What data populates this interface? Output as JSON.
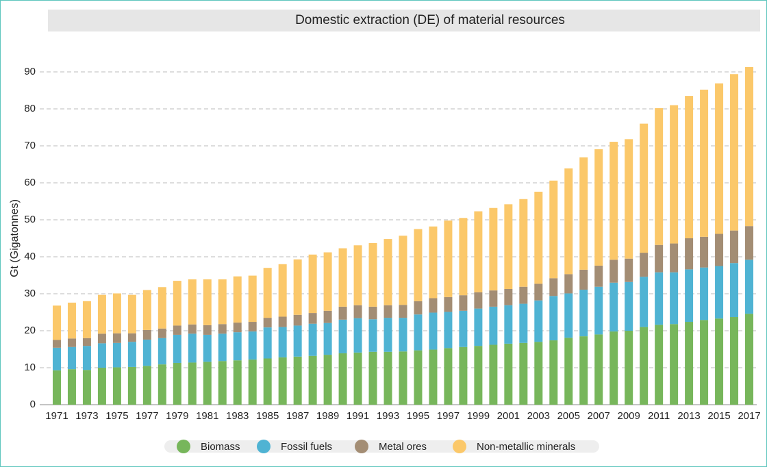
{
  "chart_data": {
    "type": "stacked_bar",
    "title": "Domestic extraction (DE) of material resources",
    "y_label": "Gt (Gigatonnes)",
    "categories": [
      "1971",
      null,
      "1973",
      null,
      "1975",
      null,
      "1977",
      null,
      "1979",
      null,
      "1981",
      null,
      "1983",
      null,
      "1985",
      null,
      "1987",
      null,
      "1989",
      null,
      "1991",
      null,
      "1993",
      null,
      "1995",
      null,
      "1997",
      null,
      "1999",
      null,
      "2001",
      null,
      "2003",
      null,
      "2005",
      null,
      "2007",
      null,
      "2009",
      null,
      "2011",
      null,
      "2013",
      null,
      "2015",
      null,
      "2017"
    ],
    "series": [
      {
        "name": "Biomass",
        "color": "#77b65b",
        "values": [
          9.3,
          9.6,
          9.4,
          10.0,
          10.1,
          10.2,
          10.5,
          10.9,
          11.3,
          11.4,
          11.6,
          11.8,
          12.0,
          12.2,
          12.5,
          12.8,
          13.0,
          13.2,
          13.5,
          13.9,
          14.1,
          14.3,
          14.3,
          14.4,
          14.7,
          14.9,
          15.3,
          15.6,
          15.9,
          16.2,
          16.5,
          16.7,
          17.0,
          17.4,
          18.1,
          18.5,
          19.0,
          19.8,
          20.0,
          21.0,
          21.6,
          21.8,
          22.4,
          22.9,
          23.3,
          23.7,
          24.6
        ]
      },
      {
        "name": "Fossil fuels",
        "color": "#4fb3d3",
        "values": [
          6.1,
          6.0,
          6.5,
          6.6,
          6.6,
          6.8,
          7.1,
          7.1,
          7.6,
          7.8,
          7.3,
          7.4,
          7.6,
          7.6,
          8.4,
          8.2,
          8.4,
          8.7,
          8.6,
          9.1,
          9.3,
          8.8,
          9.2,
          9.1,
          9.7,
          10.0,
          9.8,
          9.8,
          10.1,
          10.3,
          10.4,
          10.6,
          11.2,
          12.0,
          12.0,
          12.6,
          12.9,
          13.2,
          13.2,
          13.6,
          14.2,
          14.0,
          14.2,
          14.2,
          14.2,
          14.6,
          14.6
        ]
      },
      {
        "name": "Metal ores",
        "color": "#a38d74",
        "values": [
          2.1,
          2.3,
          2.1,
          2.6,
          2.6,
          2.3,
          2.6,
          2.6,
          2.5,
          2.5,
          2.6,
          2.6,
          2.6,
          2.6,
          2.6,
          2.8,
          2.9,
          2.9,
          3.3,
          3.5,
          3.5,
          3.4,
          3.4,
          3.5,
          3.6,
          3.9,
          4.0,
          4.2,
          4.4,
          4.4,
          4.4,
          4.6,
          4.5,
          4.8,
          5.2,
          5.4,
          5.7,
          6.2,
          6.3,
          6.5,
          7.4,
          7.8,
          8.4,
          8.3,
          8.7,
          8.8,
          9.1
        ]
      },
      {
        "name": "Non-metallic minerals",
        "color": "#fbc86a",
        "values": [
          9.3,
          9.7,
          10.0,
          10.5,
          10.8,
          10.4,
          10.8,
          11.2,
          12.1,
          12.2,
          12.4,
          12.1,
          12.5,
          12.5,
          13.5,
          14.2,
          15.0,
          15.8,
          15.8,
          15.8,
          16.2,
          17.2,
          17.9,
          18.7,
          19.5,
          19.4,
          20.7,
          20.9,
          21.9,
          22.3,
          22.9,
          23.7,
          24.9,
          26.4,
          28.6,
          30.4,
          31.5,
          31.9,
          32.3,
          34.9,
          37.0,
          37.4,
          38.5,
          39.8,
          40.7,
          42.3,
          43.0
        ]
      }
    ],
    "ylim": [
      0,
      90
    ],
    "yticks": [
      0,
      10,
      20,
      30,
      40,
      50,
      60,
      70,
      80,
      90
    ],
    "grid": true
  }
}
